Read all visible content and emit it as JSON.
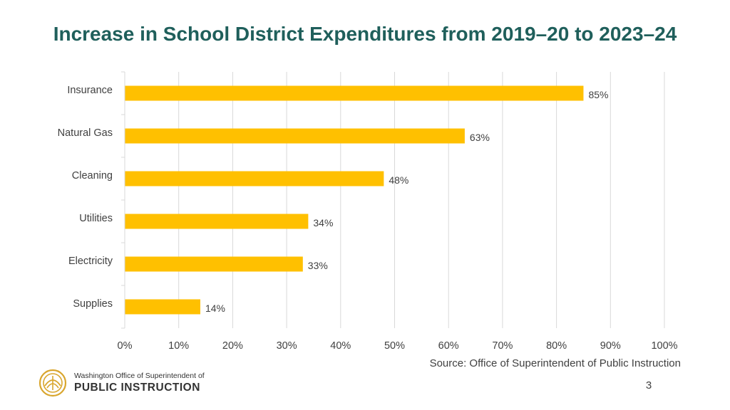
{
  "colors": {
    "title": "#1f5f5b",
    "bar": "#ffc000",
    "grid": "#d9d9d9",
    "label": "#404040",
    "logo": "#d9a62e"
  },
  "chart_data": {
    "type": "bar",
    "orientation": "horizontal",
    "title": "Increase in School District Expenditures from 2019–20 to 2023–24",
    "categories": [
      "Insurance",
      "Natural Gas",
      "Cleaning",
      "Utilities",
      "Electricity",
      "Supplies"
    ],
    "values": [
      85,
      63,
      48,
      34,
      33,
      14
    ],
    "value_labels": [
      "85%",
      "63%",
      "48%",
      "34%",
      "33%",
      "14%"
    ],
    "xlim": [
      0,
      100
    ],
    "xticks": [
      0,
      10,
      20,
      30,
      40,
      50,
      60,
      70,
      80,
      90,
      100
    ],
    "xtick_labels": [
      "0%",
      "10%",
      "20%",
      "30%",
      "40%",
      "50%",
      "60%",
      "70%",
      "80%",
      "90%",
      "100%"
    ],
    "xlabel": "",
    "ylabel": "",
    "grid": "vertical",
    "legend": "none"
  },
  "footer": {
    "source": "Source: Office of Superintendent of Public Instruction",
    "page_number": "3"
  },
  "logo": {
    "icon": "ospi-emblem-icon",
    "line1": "Washington Office of Superintendent of",
    "line2": "PUBLIC INSTRUCTION"
  }
}
